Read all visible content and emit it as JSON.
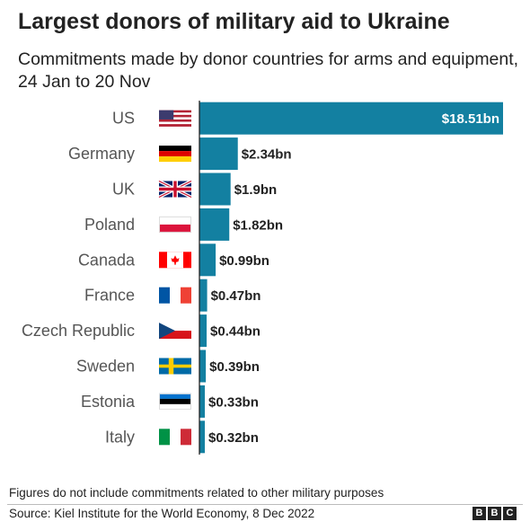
{
  "header": {
    "title": "Largest donors of military aid to Ukraine",
    "subtitle": "Commitments made by donor countries for arms and equipment, 24 Jan to 20 Nov"
  },
  "chart_data": {
    "type": "bar",
    "orientation": "horizontal",
    "title": "Largest donors of military aid to Ukraine",
    "subtitle": "Commitments made by donor countries for arms and equipment, 24 Jan to 20 Nov",
    "xlabel": "",
    "ylabel": "",
    "categories": [
      "US",
      "Germany",
      "UK",
      "Poland",
      "Canada",
      "France",
      "Czech Republic",
      "Sweden",
      "Estonia",
      "Italy"
    ],
    "values": [
      18.51,
      2.34,
      1.9,
      1.82,
      0.99,
      0.47,
      0.44,
      0.39,
      0.33,
      0.32
    ],
    "value_labels": [
      "$18.51bn",
      "$2.34bn",
      "$1.9bn",
      "$1.82bn",
      "$0.99bn",
      "$0.47bn",
      "$0.44bn",
      "$0.39bn",
      "$0.33bn",
      "$0.32bn"
    ],
    "flags": [
      "us-flag-icon",
      "germany-flag-icon",
      "uk-flag-icon",
      "poland-flag-icon",
      "canada-flag-icon",
      "france-flag-icon",
      "czech-republic-flag-icon",
      "sweden-flag-icon",
      "estonia-flag-icon",
      "italy-flag-icon"
    ],
    "xlim": [
      0,
      18.51
    ],
    "grid": false,
    "bar_color": "#1380a1"
  },
  "footer": {
    "note": "Figures do not include commitments related to other military purposes",
    "source": "Source: Kiel Institute for the World Economy, 8 Dec 2022",
    "logo": [
      "B",
      "B",
      "C"
    ]
  },
  "colors": {
    "bar": "#1380a1",
    "label_gray": "#555555",
    "text": "#222222"
  }
}
